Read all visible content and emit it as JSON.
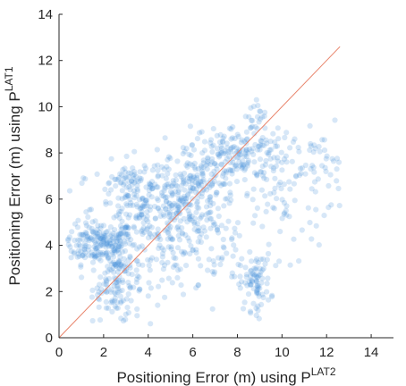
{
  "chart_data": {
    "type": "scatter",
    "title": "",
    "xlabel": {
      "base": "Positioning Error (m) using P",
      "superscript": "LAT2"
    },
    "ylabel": {
      "base": "Positioning Error (m) using P",
      "superscript": "LAT1"
    },
    "xlim": [
      0,
      15
    ],
    "ylim": [
      0,
      14
    ],
    "xticks": [
      "0",
      "2",
      "4",
      "6",
      "8",
      "10",
      "12",
      "14"
    ],
    "yticks": [
      "0",
      "2",
      "4",
      "6",
      "8",
      "10",
      "12",
      "14"
    ],
    "grid": false,
    "legend": "none",
    "point_color": "#4a90d9",
    "reference_line": {
      "color": "#e8836a",
      "x": [
        0,
        12.6
      ],
      "y": [
        0,
        12.6
      ]
    },
    "clusters": [
      {
        "center": [
          1.8,
          4.1
        ],
        "spread": [
          0.8,
          0.45
        ],
        "n": 190
      },
      {
        "center": [
          2.6,
          2.4
        ],
        "spread": [
          0.55,
          0.9
        ],
        "n": 150
      },
      {
        "center": [
          3.9,
          5.6
        ],
        "spread": [
          1.2,
          0.75
        ],
        "n": 170
      },
      {
        "center": [
          5.6,
          5.6
        ],
        "spread": [
          0.9,
          0.8
        ],
        "n": 130
      },
      {
        "center": [
          7.9,
          8.0
        ],
        "spread": [
          1.2,
          0.6
        ],
        "n": 190
      },
      {
        "center": [
          6.6,
          6.8
        ],
        "spread": [
          0.8,
          0.7
        ],
        "n": 90
      },
      {
        "center": [
          8.8,
          2.4
        ],
        "spread": [
          0.35,
          0.6
        ],
        "n": 80
      },
      {
        "center": [
          8.8,
          9.6
        ],
        "spread": [
          0.25,
          0.45
        ],
        "n": 25
      },
      {
        "center": [
          5.0,
          3.5
        ],
        "spread": [
          1.1,
          0.8
        ],
        "n": 90
      },
      {
        "center": [
          10.5,
          6.0
        ],
        "spread": [
          1.3,
          1.2
        ],
        "n": 80
      },
      {
        "center": [
          11.8,
          7.6
        ],
        "spread": [
          0.5,
          0.7
        ],
        "n": 30
      },
      {
        "center": [
          3.4,
          6.9
        ],
        "spread": [
          0.9,
          0.35
        ],
        "n": 60
      },
      {
        "center": [
          7.2,
          3.8
        ],
        "spread": [
          0.9,
          1.2
        ],
        "n": 50
      }
    ]
  }
}
